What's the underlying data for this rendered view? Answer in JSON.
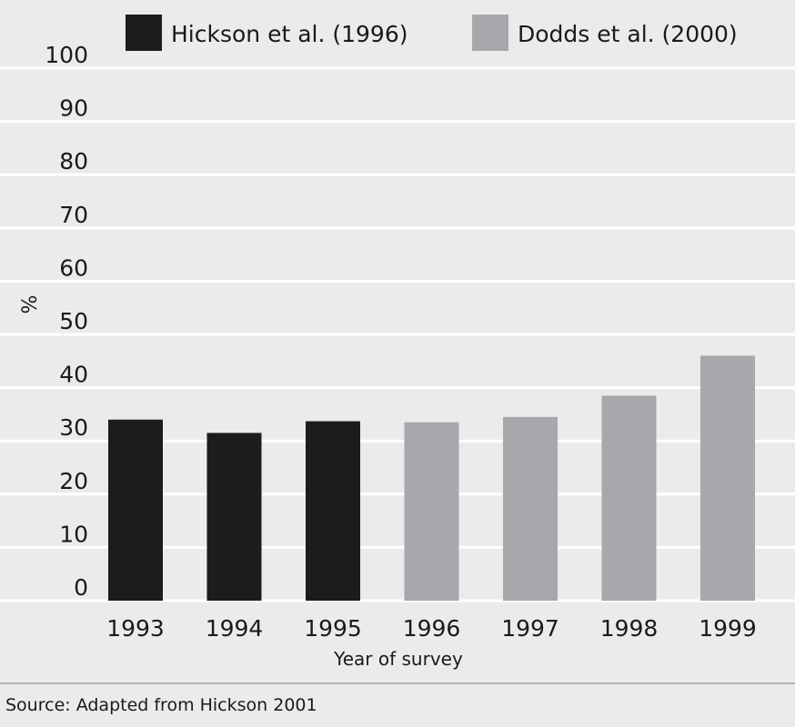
{
  "chart_data": {
    "type": "bar",
    "categories": [
      "1993",
      "1994",
      "1995",
      "1996",
      "1997",
      "1998",
      "1999"
    ],
    "series": [
      {
        "name": "Hickson et al. (1996)",
        "values": [
          34,
          31.5,
          33.7,
          null,
          null,
          null,
          null
        ],
        "color": "#1e1b1b"
      },
      {
        "name": "Dodds et al. (2000)",
        "values": [
          null,
          null,
          null,
          33.5,
          34.5,
          38.5,
          46
        ],
        "color": "#a7a8ab"
      }
    ],
    "xlabel": "Year of survey",
    "ylabel": "%",
    "ylim": [
      0,
      100
    ],
    "yticks": [
      0,
      10,
      20,
      30,
      40,
      50,
      60,
      70,
      80,
      90,
      100
    ],
    "grid": true,
    "legend": "top"
  },
  "source": "Source: Adapted from Hickson 2001"
}
